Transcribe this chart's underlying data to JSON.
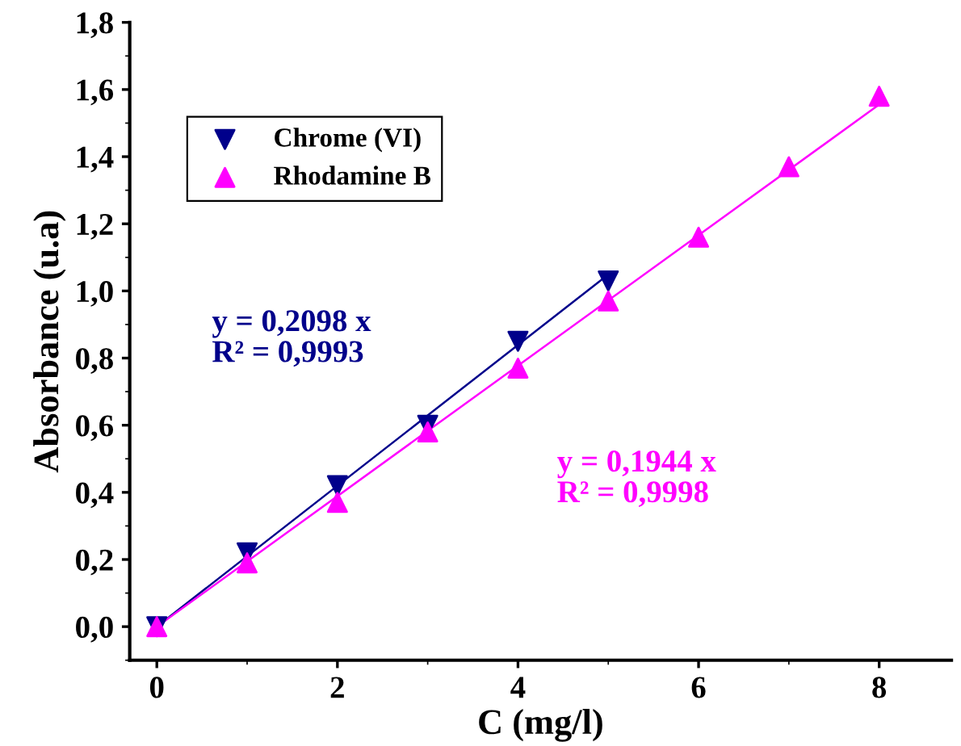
{
  "chart_data": {
    "type": "scatter",
    "xlabel": "C (mg/l)",
    "ylabel": "Absorbance (u.a)",
    "series": [
      {
        "name": "Chrome (VI)",
        "marker": "triangle",
        "color": "#00008b",
        "x": [
          0,
          1,
          2,
          3,
          4,
          5
        ],
        "values": [
          0,
          0.22,
          0.42,
          0.6,
          0.85,
          1.03
        ]
      },
      {
        "name": "Rhodamine B",
        "marker": "triangle",
        "color": "#ff00ff",
        "x": [
          0,
          1,
          2,
          3,
          4,
          5,
          6,
          7,
          8
        ],
        "values": [
          0,
          0.19,
          0.37,
          0.58,
          0.77,
          0.97,
          1.16,
          1.37,
          1.58
        ]
      },
      {
        "type": "line",
        "color": "#00008b",
        "x": [
          0,
          5
        ],
        "values": [
          0,
          1.049
        ]
      },
      {
        "type": "line",
        "color": "#ff00ff",
        "x": [
          0,
          8
        ],
        "values": [
          0,
          1.555
        ]
      }
    ],
    "annotations": [
      "y = 0,2098 x\nR² = 0,9993",
      "y = 0,1944 x\nR² = 0,9998"
    ],
    "xlim": [
      -0.3,
      8.8
    ],
    "ylim": [
      -0.1,
      1.8
    ],
    "xticks": [
      0,
      2,
      4,
      6,
      8
    ],
    "yticks": [
      {
        "value": 0,
        "label": "0,0"
      },
      {
        "value": 0.2,
        "label": "0,2"
      },
      {
        "value": 0.4,
        "label": "0,4"
      },
      {
        "value": 0.6,
        "label": "0,6"
      },
      {
        "value": 0.8,
        "label": "0,8"
      },
      {
        "value": 1.0,
        "label": "1,0"
      },
      {
        "value": 1.2,
        "label": "1,2"
      },
      {
        "value": 1.4,
        "label": "1,4"
      },
      {
        "value": 1.6,
        "label": "1,6"
      },
      {
        "value": 1.8,
        "label": "1,8"
      }
    ],
    "grid": false,
    "legend": "top left"
  }
}
